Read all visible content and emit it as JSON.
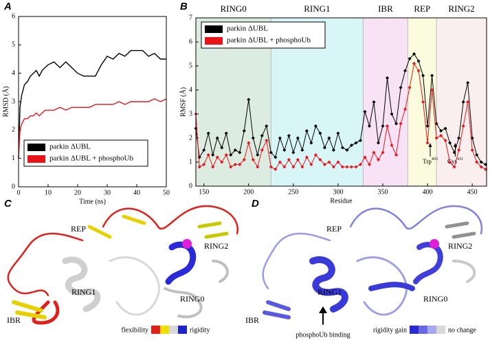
{
  "chart_data": [
    {
      "type": "line",
      "xlabel": "Time (ns)",
      "ylabel": "RMSD (Å)",
      "x": [
        0,
        0.5,
        1,
        2,
        3,
        4,
        5,
        6,
        7,
        8,
        9,
        10,
        12,
        14,
        16,
        18,
        20,
        22,
        24,
        26,
        28,
        30,
        32,
        34,
        36,
        38,
        40,
        42,
        44,
        46,
        48,
        50
      ],
      "series": [
        {
          "name": "parkin ΔUBL",
          "color": "#000000",
          "values": [
            1.0,
            2.8,
            3.2,
            3.6,
            3.7,
            3.9,
            4.0,
            4.1,
            3.9,
            4.1,
            4.2,
            4.3,
            4.4,
            4.2,
            4.4,
            4.2,
            4.0,
            3.9,
            3.9,
            3.9,
            4.3,
            4.6,
            4.5,
            4.7,
            4.6,
            4.8,
            4.8,
            4.8,
            4.6,
            4.7,
            4.5,
            4.5
          ]
        },
        {
          "name": "parkin ΔUBL + phosphoUb",
          "color": "#e8141a",
          "values": [
            1.0,
            2.0,
            2.2,
            2.4,
            2.4,
            2.5,
            2.5,
            2.6,
            2.5,
            2.6,
            2.7,
            2.7,
            2.7,
            2.8,
            2.7,
            2.8,
            2.8,
            2.8,
            2.8,
            2.9,
            2.9,
            2.9,
            2.9,
            3.0,
            2.9,
            3.0,
            3.0,
            3.0,
            3.0,
            3.1,
            3.0,
            3.1
          ]
        }
      ],
      "xlim": [
        0,
        50
      ],
      "xticks": [
        0,
        10,
        20,
        30,
        40,
        50
      ],
      "ylim": [
        0,
        6
      ],
      "yticks": [
        0,
        1,
        2,
        3,
        4,
        5,
        6
      ],
      "legend": "lower left",
      "markers": false
    },
    {
      "type": "line",
      "xlabel": "Residue",
      "ylabel": "RMSF (Å)",
      "x": [
        141,
        145,
        150,
        155,
        160,
        165,
        170,
        175,
        180,
        185,
        190,
        195,
        200,
        205,
        210,
        215,
        220,
        225,
        230,
        235,
        240,
        245,
        250,
        255,
        260,
        265,
        270,
        275,
        280,
        285,
        290,
        295,
        300,
        305,
        310,
        315,
        320,
        325,
        330,
        335,
        340,
        345,
        350,
        355,
        360,
        365,
        370,
        375,
        380,
        385,
        390,
        395,
        400,
        405,
        410,
        415,
        420,
        425,
        430,
        435,
        440,
        445,
        450,
        455,
        460,
        465
      ],
      "series": [
        {
          "name": "parkin ΔUBL",
          "color": "#000000",
          "values": [
            2.4,
            1.2,
            1.5,
            2.2,
            1.3,
            2.0,
            1.6,
            2.2,
            1.3,
            1.5,
            1.4,
            2.3,
            3.6,
            2.0,
            1.3,
            2.1,
            2.5,
            1.4,
            1.2,
            2.0,
            1.5,
            2.1,
            1.4,
            2.0,
            1.5,
            2.3,
            1.8,
            2.5,
            2.2,
            1.6,
            2.0,
            1.5,
            2.2,
            1.6,
            1.5,
            1.7,
            1.8,
            1.9,
            3.1,
            2.5,
            3.5,
            1.8,
            2.5,
            4.5,
            3.0,
            2.6,
            4.1,
            4.8,
            5.3,
            5.5,
            5.2,
            4.6,
            2.5,
            4.6,
            2.6,
            2.3,
            2.4,
            1.8,
            1.4,
            2.0,
            3.5,
            4.3,
            2.0,
            1.3,
            1.0,
            0.9
          ]
        },
        {
          "name": "parkin ΔUBL + phosphoUb",
          "color": "#e8141a",
          "values": [
            3.0,
            0.8,
            0.9,
            1.3,
            0.8,
            1.2,
            1.0,
            1.3,
            0.8,
            0.9,
            0.9,
            1.1,
            1.8,
            1.1,
            0.8,
            1.5,
            1.9,
            0.8,
            0.7,
            1.0,
            0.8,
            1.1,
            0.8,
            1.1,
            0.8,
            1.2,
            0.9,
            1.3,
            1.1,
            0.9,
            1.0,
            0.8,
            1.0,
            0.8,
            0.8,
            0.8,
            0.8,
            0.9,
            1.2,
            0.9,
            1.4,
            1.1,
            1.4,
            2.5,
            1.7,
            1.3,
            2.6,
            3.2,
            4.1,
            5.1,
            4.8,
            3.5,
            1.8,
            4.0,
            2.0,
            2.1,
            1.9,
            1.0,
            0.8,
            1.5,
            2.5,
            3.5,
            1.5,
            1.0,
            0.8,
            0.7
          ]
        }
      ],
      "xlim": [
        141,
        466
      ],
      "xticks": [
        150,
        200,
        250,
        300,
        350,
        400,
        450
      ],
      "ylim": [
        0,
        7
      ],
      "yticks": [
        0,
        1,
        2,
        3,
        4,
        5,
        6,
        7
      ],
      "legend": "upper left",
      "markers": true,
      "regions": [
        {
          "name": "RING0",
          "start": 141,
          "end": 225,
          "color": "#dcece1"
        },
        {
          "name": "RING1",
          "start": 225,
          "end": 328,
          "color": "#d8f6f8"
        },
        {
          "name": "IBR",
          "start": 328,
          "end": 378,
          "color": "#f7e2f6"
        },
        {
          "name": "REP",
          "start": 378,
          "end": 410,
          "color": "#fbfbdd"
        },
        {
          "name": "RING2",
          "start": 410,
          "end": 466,
          "color": "#fbeeee"
        }
      ],
      "annotations": [
        {
          "text": "Trp",
          "sup": "403",
          "x": 403
        },
        {
          "text": "Cys",
          "sup": "431",
          "x": 431
        }
      ]
    }
  ],
  "panel_labels": [
    "A",
    "B",
    "C",
    "D"
  ],
  "structures": [
    {
      "labels": [
        "REP",
        "RING2",
        "RING1",
        "RING0",
        "IBR"
      ],
      "legend": {
        "left": "flexibility",
        "right": "rigidity"
      }
    },
    {
      "labels": [
        "REP",
        "RING2",
        "RING1",
        "RING0",
        "IBR"
      ],
      "note": "phosphoUb binding",
      "legend": {
        "left": "rigidity gain",
        "right": "no change"
      }
    }
  ]
}
